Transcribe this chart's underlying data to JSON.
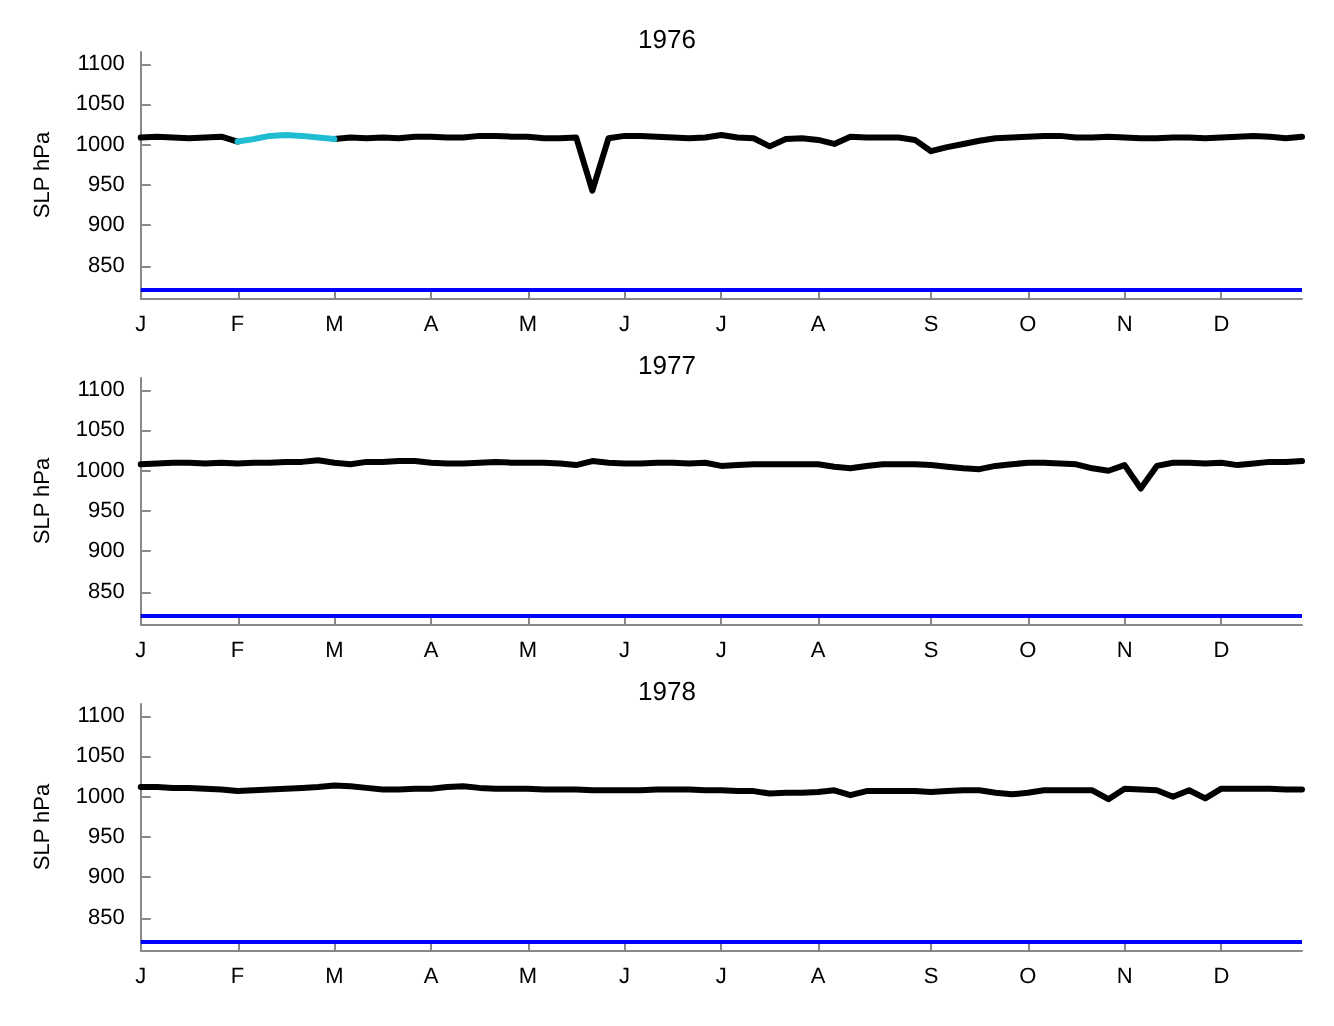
{
  "chart_data": [
    {
      "type": "line",
      "title": "1976",
      "ylabel": "SLP hPa",
      "ylim": [
        810,
        1115
      ],
      "yticks": [
        850,
        900,
        950,
        1000,
        1050,
        1100
      ],
      "grid": false,
      "marker": "none",
      "line_style": "solid",
      "categories": [
        "J",
        null,
        null,
        null,
        null,
        null,
        "F",
        null,
        null,
        null,
        null,
        null,
        "M",
        null,
        null,
        null,
        null,
        null,
        "A",
        null,
        null,
        null,
        null,
        null,
        "M",
        null,
        null,
        null,
        null,
        null,
        "J",
        null,
        null,
        null,
        null,
        null,
        "J",
        null,
        null,
        null,
        null,
        null,
        "A",
        null,
        null,
        null,
        null,
        null,
        null,
        "S",
        null,
        null,
        null,
        null,
        null,
        "O",
        null,
        null,
        null,
        null,
        null,
        "N",
        null,
        null,
        null,
        null,
        null,
        "D",
        null,
        null,
        null,
        null,
        null
      ],
      "ref_lines": [
        {
          "axis": "y",
          "value": 820,
          "color": "#0000ff"
        }
      ],
      "series": [
        {
          "color": "#000000",
          "values": [
            1009,
            1010,
            1009,
            1008,
            1009,
            1010,
            1004,
            null,
            null,
            null,
            null,
            null,
            1007,
            1009,
            1008,
            1009,
            1008,
            1010,
            1010,
            1009,
            1009,
            1011,
            1011,
            1010,
            1010,
            1008,
            1008,
            1009,
            943,
            1008,
            1011,
            1011,
            1010,
            1009,
            1008,
            1009,
            1012,
            1009,
            1008,
            998,
            1007,
            1008,
            1006,
            1001,
            1010,
            1009,
            1009,
            1009,
            1006,
            992,
            997,
            1001,
            1005,
            1008,
            1009,
            1010,
            1011,
            1011,
            1009,
            1009,
            1010,
            1009,
            1008,
            1008,
            1009,
            1009,
            1008,
            1009,
            1010,
            1011,
            1010,
            1008,
            1010
          ]
        },
        {
          "color": "#1fbcd2",
          "values": [
            null,
            null,
            null,
            null,
            null,
            null,
            1004,
            1007,
            1011,
            1012,
            1011,
            1009,
            1007,
            null,
            null,
            null,
            null,
            null,
            null,
            null,
            null,
            null,
            null,
            null,
            null,
            null,
            null,
            null,
            null,
            null,
            null,
            null,
            null,
            null,
            null,
            null,
            null,
            null,
            null,
            null,
            null,
            null,
            null,
            null,
            null,
            null,
            null,
            null,
            null,
            null,
            null,
            null,
            null,
            null,
            null,
            null,
            null,
            null,
            null,
            null,
            null,
            null,
            null,
            null,
            null,
            null,
            null,
            null,
            null,
            null,
            null,
            null,
            null
          ]
        }
      ]
    },
    {
      "type": "line",
      "title": "1977",
      "ylabel": "SLP hPa",
      "ylim": [
        810,
        1115
      ],
      "yticks": [
        850,
        900,
        950,
        1000,
        1050,
        1100
      ],
      "grid": false,
      "marker": "none",
      "line_style": "solid",
      "categories": [
        "J",
        null,
        null,
        null,
        null,
        null,
        "F",
        null,
        null,
        null,
        null,
        null,
        "M",
        null,
        null,
        null,
        null,
        null,
        "A",
        null,
        null,
        null,
        null,
        null,
        "M",
        null,
        null,
        null,
        null,
        null,
        "J",
        null,
        null,
        null,
        null,
        null,
        "J",
        null,
        null,
        null,
        null,
        null,
        "A",
        null,
        null,
        null,
        null,
        null,
        null,
        "S",
        null,
        null,
        null,
        null,
        null,
        "O",
        null,
        null,
        null,
        null,
        null,
        "N",
        null,
        null,
        null,
        null,
        null,
        "D",
        null,
        null,
        null,
        null,
        null
      ],
      "ref_lines": [
        {
          "axis": "y",
          "value": 820,
          "color": "#0000ff"
        }
      ],
      "series": [
        {
          "color": "#000000",
          "values": [
            1008,
            1009,
            1010,
            1010,
            1009,
            1010,
            1009,
            1010,
            1010,
            1011,
            1011,
            1013,
            1010,
            1008,
            1011,
            1011,
            1012,
            1012,
            1010,
            1009,
            1009,
            1010,
            1011,
            1010,
            1010,
            1010,
            1009,
            1007,
            1012,
            1010,
            1009,
            1009,
            1010,
            1010,
            1009,
            1010,
            1006,
            1007,
            1008,
            1008,
            1008,
            1008,
            1008,
            1005,
            1003,
            1006,
            1008,
            1008,
            1008,
            1007,
            1005,
            1003,
            1002,
            1006,
            1008,
            1010,
            1010,
            1009,
            1008,
            1003,
            1000,
            1007,
            978,
            1006,
            1010,
            1010,
            1009,
            1010,
            1007,
            1009,
            1011,
            1011,
            1012
          ]
        }
      ]
    },
    {
      "type": "line",
      "title": "1978",
      "ylabel": "SLP hPa",
      "ylim": [
        810,
        1115
      ],
      "yticks": [
        850,
        900,
        950,
        1000,
        1050,
        1100
      ],
      "grid": false,
      "marker": "none",
      "line_style": "solid",
      "categories": [
        "J",
        null,
        null,
        null,
        null,
        null,
        "F",
        null,
        null,
        null,
        null,
        null,
        "M",
        null,
        null,
        null,
        null,
        null,
        "A",
        null,
        null,
        null,
        null,
        null,
        "M",
        null,
        null,
        null,
        null,
        null,
        "J",
        null,
        null,
        null,
        null,
        null,
        "J",
        null,
        null,
        null,
        null,
        null,
        "A",
        null,
        null,
        null,
        null,
        null,
        null,
        "S",
        null,
        null,
        null,
        null,
        null,
        "O",
        null,
        null,
        null,
        null,
        null,
        "N",
        null,
        null,
        null,
        null,
        null,
        "D",
        null,
        null,
        null,
        null,
        null
      ],
      "ref_lines": [
        {
          "axis": "y",
          "value": 820,
          "color": "#0000ff"
        }
      ],
      "series": [
        {
          "color": "#000000",
          "values": [
            1012,
            1012,
            1011,
            1011,
            1010,
            1009,
            1007,
            1008,
            1009,
            1010,
            1011,
            1012,
            1014,
            1013,
            1011,
            1009,
            1009,
            1010,
            1010,
            1012,
            1013,
            1011,
            1010,
            1010,
            1010,
            1009,
            1009,
            1009,
            1008,
            1008,
            1008,
            1008,
            1009,
            1009,
            1009,
            1008,
            1008,
            1007,
            1007,
            1004,
            1005,
            1005,
            1006,
            1008,
            1002,
            1007,
            1007,
            1007,
            1007,
            1006,
            1007,
            1008,
            1008,
            1005,
            1003,
            1005,
            1008,
            1008,
            1008,
            1008,
            997,
            1010,
            1009,
            1008,
            1000,
            1008,
            998,
            1010,
            1010,
            1010,
            1010,
            1009,
            1009
          ]
        }
      ]
    }
  ]
}
